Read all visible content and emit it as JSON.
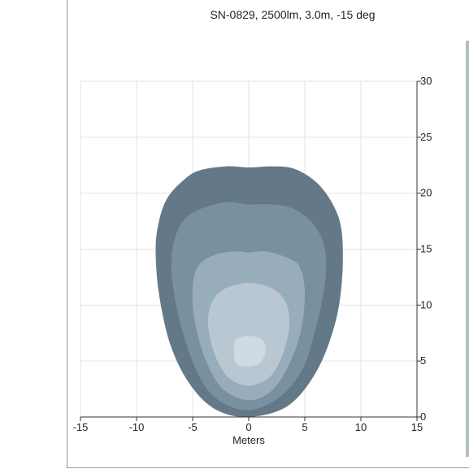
{
  "chart_data": {
    "type": "contour",
    "title": "SN-0829, 2500lm, 3.0m, -15 deg",
    "xlabel": "Meters",
    "ylabel": "",
    "xlim": [
      -15,
      15
    ],
    "ylim": [
      0,
      30
    ],
    "x_ticks": [
      -15,
      -10,
      -5,
      0,
      5,
      10,
      15
    ],
    "y_ticks": [
      0,
      5,
      10,
      15,
      20,
      25,
      30
    ],
    "y_axis_side": "right",
    "grid": true,
    "levels": [
      {
        "color": "#637987",
        "outline": [
          [
            0,
            0
          ],
          [
            -3,
            0.7
          ],
          [
            -5.3,
            3
          ],
          [
            -7,
            6.5
          ],
          [
            -8,
            11
          ],
          [
            -8.3,
            15
          ],
          [
            -8,
            17.5
          ],
          [
            -7.3,
            19.5
          ],
          [
            -6,
            21
          ],
          [
            -4.5,
            22
          ],
          [
            -2,
            22.4
          ],
          [
            0,
            22.3
          ],
          [
            2,
            22.4
          ],
          [
            4,
            22.2
          ],
          [
            6,
            21
          ],
          [
            7.5,
            19
          ],
          [
            8.3,
            16.5
          ],
          [
            8.3,
            12
          ],
          [
            7.6,
            8
          ],
          [
            6,
            4
          ],
          [
            3.5,
            1
          ],
          [
            0,
            0
          ]
        ]
      },
      {
        "color": "#7890a0",
        "outline": [
          [
            0,
            0.6
          ],
          [
            -2.7,
            1.5
          ],
          [
            -4.5,
            3.8
          ],
          [
            -6,
            8
          ],
          [
            -6.8,
            12
          ],
          [
            -6.8,
            15
          ],
          [
            -6,
            17.3
          ],
          [
            -4.5,
            18.5
          ],
          [
            -2,
            19.2
          ],
          [
            0,
            19
          ],
          [
            2,
            19
          ],
          [
            4,
            18.6
          ],
          [
            5.8,
            17.2
          ],
          [
            6.8,
            15
          ],
          [
            6.8,
            12
          ],
          [
            6,
            8
          ],
          [
            4.8,
            4.3
          ],
          [
            2.8,
            1.8
          ],
          [
            0,
            0.6
          ]
        ]
      },
      {
        "color": "#98adbb",
        "outline": [
          [
            0,
            1.5
          ],
          [
            -2.3,
            2.5
          ],
          [
            -3.8,
            5
          ],
          [
            -4.8,
            8.5
          ],
          [
            -5,
            11.5
          ],
          [
            -4.5,
            13.5
          ],
          [
            -3,
            14.5
          ],
          [
            -1,
            14.8
          ],
          [
            0,
            14.7
          ],
          [
            1.5,
            14.8
          ],
          [
            3,
            14.4
          ],
          [
            4.5,
            13.5
          ],
          [
            5,
            11
          ],
          [
            4.6,
            7.5
          ],
          [
            3.5,
            4.5
          ],
          [
            2,
            2.3
          ],
          [
            0,
            1.5
          ]
        ]
      },
      {
        "color": "#b8c7d1",
        "outline": [
          [
            0,
            2.8
          ],
          [
            -1.8,
            3.5
          ],
          [
            -3,
            5.5
          ],
          [
            -3.6,
            8
          ],
          [
            -3.4,
            10
          ],
          [
            -2.4,
            11.3
          ],
          [
            -0.8,
            11.9
          ],
          [
            0.8,
            11.9
          ],
          [
            2.4,
            11.3
          ],
          [
            3.4,
            10
          ],
          [
            3.6,
            8
          ],
          [
            3,
            5.5
          ],
          [
            1.8,
            3.5
          ],
          [
            0,
            2.8
          ]
        ]
      },
      {
        "color": "#cfdae2",
        "outline": [
          [
            0,
            4.5
          ],
          [
            -1,
            4.7
          ],
          [
            -1.3,
            5.5
          ],
          [
            -1.2,
            6.8
          ],
          [
            -0.5,
            7.2
          ],
          [
            0.5,
            7.2
          ],
          [
            1.3,
            6.8
          ],
          [
            1.5,
            5.8
          ],
          [
            1,
            4.8
          ],
          [
            0,
            4.5
          ]
        ]
      }
    ]
  }
}
